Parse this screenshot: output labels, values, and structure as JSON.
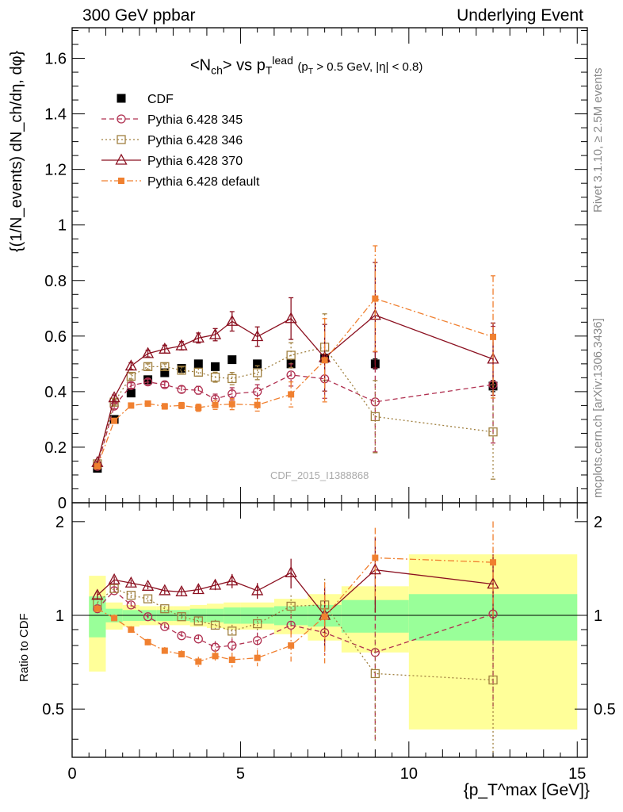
{
  "header": {
    "left": "300 GeV ppbar",
    "right": "Underlying Event"
  },
  "side_labels": {
    "rivet": "Rivet 3.1.10, ≥ 2.5M events",
    "mcplots": "mcplots.cern.ch [arXiv:1306.3436]"
  },
  "watermark": "CDF_2015_I1388868",
  "chart_data": [
    {
      "type": "scatter",
      "panel": "main",
      "title": {
        "main": "<N",
        "main_sub": "ch",
        "mid": "> vs p",
        "mid_sub": "T",
        "mid_sup": "lead",
        "cut": "(p",
        "cut_sub": "T",
        "cut_rest": "> 0.5 GeV, |η| < 0.8)"
      },
      "ylabel": "{(1/N_events) dN_ch/dη, dφ}",
      "xlim": [
        0,
        15.3
      ],
      "ylim": [
        0,
        1.71
      ],
      "yticks": [
        "0",
        "0.2",
        "0.4",
        "0.6",
        "0.8",
        "1",
        "1.2",
        "1.4",
        "1.6"
      ],
      "x": [
        0.75,
        1.25,
        1.75,
        2.25,
        2.75,
        3.25,
        3.75,
        4.25,
        4.75,
        5.5,
        6.5,
        7.5,
        9.0,
        12.5
      ],
      "legend_position": "top-left",
      "series": [
        {
          "name": "CDF",
          "color": "#000000",
          "marker": "filled-square",
          "line": "none",
          "values": [
            0.124,
            0.3,
            0.395,
            0.443,
            0.468,
            0.484,
            0.5,
            0.49,
            0.515,
            0.5,
            0.5,
            0.52,
            0.5,
            0.42
          ],
          "errors": [
            0.005,
            0.006,
            0.006,
            0.006,
            0.007,
            0.007,
            0.008,
            0.009,
            0.01,
            0.01,
            0.012,
            0.015,
            0.018,
            0.02
          ]
        },
        {
          "name": "Pythia 6.428 345",
          "color": "#b03050",
          "marker": "open-circle",
          "line": "dashed",
          "values": [
            0.131,
            0.348,
            0.422,
            0.435,
            0.425,
            0.408,
            0.405,
            0.373,
            0.392,
            0.4,
            0.46,
            0.446,
            0.363,
            0.425
          ],
          "errors": [
            0.004,
            0.01,
            0.01,
            0.01,
            0.01,
            0.012,
            0.014,
            0.018,
            0.022,
            0.025,
            0.04,
            0.07,
            0.18,
            0.21
          ]
        },
        {
          "name": "Pythia 6.428 346",
          "color": "#a08040",
          "marker": "open-square",
          "line": "dotted",
          "values": [
            0.14,
            0.362,
            0.455,
            0.49,
            0.49,
            0.477,
            0.47,
            0.452,
            0.447,
            0.468,
            0.531,
            0.56,
            0.31,
            0.255
          ],
          "errors": [
            0.004,
            0.01,
            0.01,
            0.01,
            0.01,
            0.012,
            0.014,
            0.018,
            0.022,
            0.025,
            0.045,
            0.12,
            0.13,
            0.17
          ]
        },
        {
          "name": "Pythia 6.428 370",
          "color": "#8b1020",
          "marker": "open-triangle",
          "line": "solid",
          "values": [
            0.145,
            0.378,
            0.492,
            0.537,
            0.553,
            0.565,
            0.593,
            0.605,
            0.653,
            0.598,
            0.663,
            0.522,
            0.675,
            0.517
          ],
          "errors": [
            0.004,
            0.01,
            0.012,
            0.012,
            0.014,
            0.015,
            0.018,
            0.022,
            0.035,
            0.035,
            0.075,
            0.12,
            0.19,
            0.13
          ]
        },
        {
          "name": "Pythia 6.428 default",
          "color": "#f08030",
          "marker": "filled-square-small",
          "line": "dashdot",
          "values": [
            0.131,
            0.295,
            0.35,
            0.357,
            0.347,
            0.35,
            0.342,
            0.352,
            0.355,
            0.352,
            0.39,
            0.513,
            0.735,
            0.597
          ],
          "errors": [
            0.004,
            0.008,
            0.009,
            0.009,
            0.01,
            0.011,
            0.013,
            0.016,
            0.02,
            0.022,
            0.045,
            0.15,
            0.19,
            0.22
          ]
        }
      ]
    },
    {
      "type": "scatter",
      "panel": "ratio",
      "ylabel": "Ratio to CDF",
      "xlabel": "{p_T^max [GeV]}",
      "xlim": [
        0,
        15.3
      ],
      "ylim": [
        0.35,
        2.3
      ],
      "yticks": [
        "0.5",
        "1",
        "2"
      ],
      "xticks": [
        "0",
        "5",
        "10",
        "15"
      ],
      "bands": {
        "edges": [
          0.5,
          1.0,
          1.5,
          2.0,
          2.5,
          3.0,
          3.5,
          4.0,
          4.5,
          5.0,
          6.0,
          7.0,
          8.0,
          10.0,
          15.0
        ],
        "green": [
          0.15,
          0.05,
          0.04,
          0.04,
          0.04,
          0.04,
          0.05,
          0.05,
          0.06,
          0.06,
          0.07,
          0.08,
          0.12,
          0.17
        ],
        "yellow": [
          0.34,
          0.1,
          0.08,
          0.07,
          0.07,
          0.07,
          0.08,
          0.09,
          0.1,
          0.1,
          0.13,
          0.17,
          0.24,
          0.57
        ],
        "green_color": "#99ff99",
        "yellow_color": "#ffff99"
      },
      "x": [
        0.75,
        1.25,
        1.75,
        2.25,
        2.75,
        3.25,
        3.75,
        4.25,
        4.75,
        5.5,
        6.5,
        7.5,
        9.0,
        12.5
      ],
      "series": [
        {
          "name": "Pythia 6.428 345",
          "values": [
            1.05,
            1.2,
            1.08,
            0.99,
            0.92,
            0.86,
            0.84,
            0.79,
            0.8,
            0.83,
            0.93,
            0.88,
            0.76,
            1.01
          ]
        },
        {
          "name": "Pythia 6.428 346",
          "values": [
            1.1,
            1.22,
            1.16,
            1.13,
            1.05,
            0.99,
            0.96,
            0.93,
            0.89,
            0.94,
            1.07,
            1.08,
            0.65,
            0.62
          ]
        },
        {
          "name": "Pythia 6.428 370",
          "values": [
            1.16,
            1.3,
            1.27,
            1.24,
            1.2,
            1.19,
            1.21,
            1.25,
            1.29,
            1.2,
            1.37,
            1.0,
            1.4,
            1.26
          ]
        },
        {
          "name": "Pythia 6.428 default",
          "values": [
            1.05,
            0.98,
            0.9,
            0.82,
            0.77,
            0.75,
            0.71,
            0.74,
            0.72,
            0.73,
            0.8,
            0.99,
            1.53,
            1.48
          ]
        }
      ]
    }
  ]
}
